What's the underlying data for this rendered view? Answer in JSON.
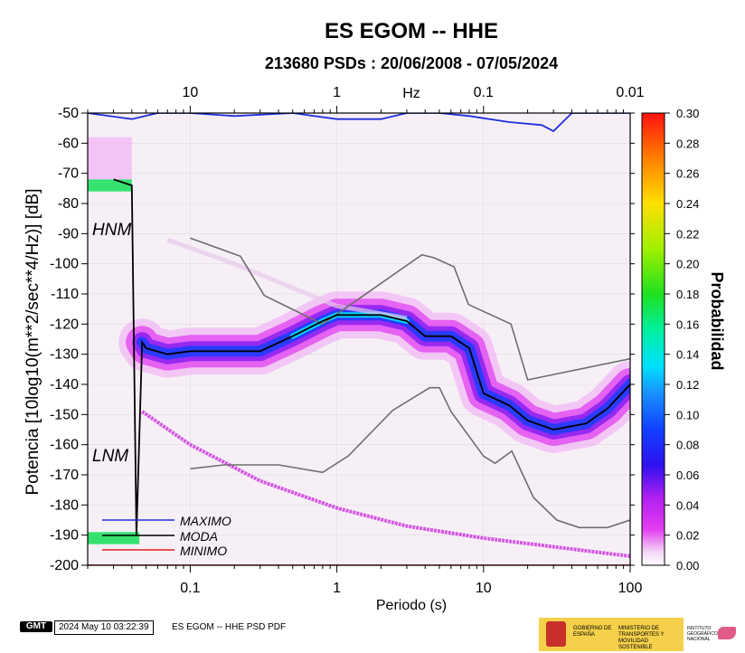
{
  "chart_data": {
    "type": "heatmap",
    "title": "ES EGOM -- HHE",
    "subtitle": "213680 PSDs : 20/06/2008 - 07/05/2024",
    "xlabel": "Periodo (s)",
    "ylabel": "Potencia [10log10(m**2/sec**4/Hz)] [dB]",
    "x_scale": "log",
    "xlim": [
      0.02,
      100
    ],
    "ylim": [
      -200,
      -50
    ],
    "x_ticks": [
      {
        "value": 0.1,
        "label": "0.1"
      },
      {
        "value": 1,
        "label": "1"
      },
      {
        "value": 10,
        "label": "10"
      },
      {
        "value": 100,
        "label": "100"
      }
    ],
    "top_axis_label": "Hz",
    "top_ticks": [
      {
        "period": 0.1,
        "label": "10"
      },
      {
        "period": 1,
        "label": "1"
      },
      {
        "period": 10,
        "label": "0.1"
      },
      {
        "period": 100,
        "label": "0.01"
      }
    ],
    "y_ticks": [
      -50,
      -60,
      -70,
      -80,
      -90,
      -100,
      -110,
      -120,
      -130,
      -140,
      -150,
      -160,
      -170,
      -180,
      -190,
      -200
    ],
    "colorbar": {
      "label": "Probabilidad",
      "min": 0.0,
      "max": 0.3,
      "ticks": [
        "0.00",
        "0.02",
        "0.04",
        "0.06",
        "0.08",
        "0.10",
        "0.12",
        "0.14",
        "0.16",
        "0.18",
        "0.20",
        "0.22",
        "0.24",
        "0.26",
        "0.28",
        "0.30"
      ]
    },
    "model_labels": {
      "high": "HNM",
      "low": "LNM"
    },
    "legend": [
      {
        "name": "MAXIMO",
        "color": "#1f2fdc"
      },
      {
        "name": "MODA",
        "color": "#000000"
      },
      {
        "name": "MINIMO",
        "color": "#e01e1e"
      }
    ],
    "series": [
      {
        "name": "MAXIMO",
        "color": "#1f2fdc",
        "points": [
          [
            0.02,
            -50
          ],
          [
            0.04,
            -52
          ],
          [
            0.06,
            -50
          ],
          [
            0.1,
            -50
          ],
          [
            0.2,
            -51
          ],
          [
            0.5,
            -50
          ],
          [
            1,
            -52
          ],
          [
            2,
            -52
          ],
          [
            3,
            -50
          ],
          [
            5,
            -50
          ],
          [
            8,
            -51
          ],
          [
            15,
            -53
          ],
          [
            25,
            -54
          ],
          [
            30,
            -56
          ],
          [
            40,
            -50
          ],
          [
            100,
            -50
          ]
        ]
      },
      {
        "name": "MODA",
        "color": "#000000",
        "points": [
          [
            0.03,
            -72
          ],
          [
            0.04,
            -74
          ],
          [
            0.043,
            -190
          ],
          [
            0.047,
            -126
          ],
          [
            0.05,
            -128
          ],
          [
            0.07,
            -130
          ],
          [
            0.1,
            -129
          ],
          [
            0.2,
            -129
          ],
          [
            0.3,
            -129
          ],
          [
            0.5,
            -124
          ],
          [
            0.8,
            -119
          ],
          [
            1,
            -117
          ],
          [
            2,
            -117
          ],
          [
            3,
            -119
          ],
          [
            4,
            -124
          ],
          [
            6,
            -124
          ],
          [
            8,
            -128
          ],
          [
            10,
            -143
          ],
          [
            15,
            -147
          ],
          [
            20,
            -152
          ],
          [
            30,
            -155
          ],
          [
            50,
            -153
          ],
          [
            70,
            -148
          ],
          [
            100,
            -140
          ]
        ]
      },
      {
        "name": "MINIMO",
        "color": "#e01e1e",
        "points": [
          [
            0.02,
            -200
          ],
          [
            100,
            -200
          ]
        ]
      },
      {
        "name": "HNM",
        "color": "#6e6e6e",
        "points": [
          [
            0.1,
            -91.5
          ],
          [
            0.22,
            -97.5
          ],
          [
            0.32,
            -110.5
          ],
          [
            0.8,
            -120
          ],
          [
            3.8,
            -97
          ],
          [
            4.6,
            -98
          ],
          [
            6.3,
            -101
          ],
          [
            7.9,
            -113.5
          ],
          [
            15.4,
            -120
          ],
          [
            20,
            -138.5
          ],
          [
            100,
            -131.5
          ]
        ]
      },
      {
        "name": "LNM",
        "color": "#6e6e6e",
        "points": [
          [
            0.1,
            -168
          ],
          [
            0.17,
            -166.7
          ],
          [
            0.4,
            -166.7
          ],
          [
            0.8,
            -169.2
          ],
          [
            1.2,
            -163.7
          ],
          [
            2.4,
            -148.6
          ],
          [
            4.3,
            -141.1
          ],
          [
            5,
            -141.1
          ],
          [
            6,
            -149
          ],
          [
            10,
            -163.8
          ],
          [
            12,
            -166.2
          ],
          [
            15.6,
            -162.1
          ],
          [
            21.9,
            -177.5
          ],
          [
            31.6,
            -185
          ],
          [
            45,
            -187.5
          ],
          [
            70,
            -187.5
          ],
          [
            100,
            -185
          ]
        ]
      }
    ]
  },
  "footer": {
    "logo_text": "GMT",
    "timestamp": "2024 May 10 03:22:39",
    "label": "ES EGOM -- HHE PSD PDF"
  },
  "logos": {
    "gobierno": "GOBIERNO DE ESPAÑA",
    "ministerio": "MINISTERIO DE TRANSPORTES Y MOVILIDAD SOSTENIBLE",
    "instituto": "INSTITUTO GEOGRÁFICO NACIONAL"
  }
}
